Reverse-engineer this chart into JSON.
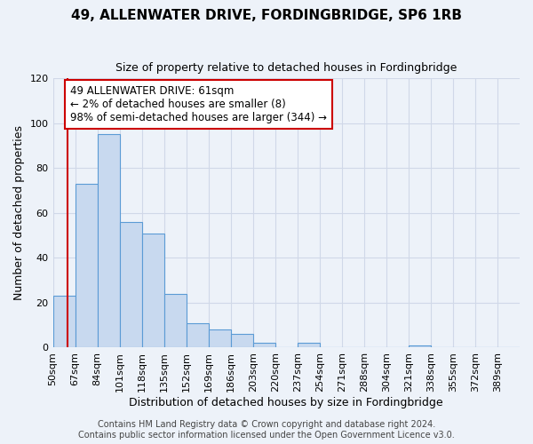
{
  "title": "49, ALLENWATER DRIVE, FORDINGBRIDGE, SP6 1RB",
  "subtitle": "Size of property relative to detached houses in Fordingbridge",
  "xlabel": "Distribution of detached houses by size in Fordingbridge",
  "ylabel": "Number of detached properties",
  "bin_labels": [
    "50sqm",
    "67sqm",
    "84sqm",
    "101sqm",
    "118sqm",
    "135sqm",
    "152sqm",
    "169sqm",
    "186sqm",
    "203sqm",
    "220sqm",
    "237sqm",
    "254sqm",
    "271sqm",
    "288sqm",
    "304sqm",
    "321sqm",
    "338sqm",
    "355sqm",
    "372sqm",
    "389sqm"
  ],
  "bar_values": [
    23,
    73,
    95,
    56,
    51,
    24,
    11,
    8,
    6,
    2,
    0,
    2,
    0,
    0,
    0,
    0,
    1,
    0,
    0,
    0,
    0
  ],
  "bar_color": "#c8d9ef",
  "bar_edge_color": "#5b9bd5",
  "property_line_bin_index": 0.67,
  "annotation_line1": "49 ALLENWATER DRIVE: 61sqm",
  "annotation_line2": "← 2% of detached houses are smaller (8)",
  "annotation_line3": "98% of semi-detached houses are larger (344) →",
  "annotation_box_color": "#ffffff",
  "annotation_box_edge_color": "#cc0000",
  "red_line_color": "#cc0000",
  "ylim": [
    0,
    120
  ],
  "yticks": [
    0,
    20,
    40,
    60,
    80,
    100,
    120
  ],
  "grid_color": "#d0d8e8",
  "bg_color": "#edf2f9",
  "footnote1": "Contains HM Land Registry data © Crown copyright and database right 2024.",
  "footnote2": "Contains public sector information licensed under the Open Government Licence v3.0.",
  "title_fontsize": 11,
  "subtitle_fontsize": 9,
  "axis_label_fontsize": 9,
  "tick_fontsize": 8,
  "annotation_fontsize": 8.5,
  "footnote_fontsize": 7
}
